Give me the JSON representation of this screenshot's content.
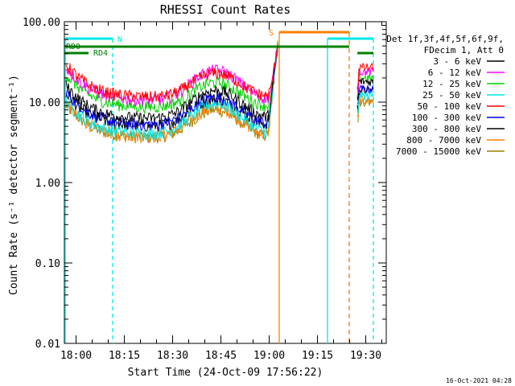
{
  "chart_data": {
    "type": "line",
    "title": "RHESSI Count Rates",
    "xlabel": "Start Time (24-Oct-09 17:56:22)",
    "ylabel": "Count Rate (s⁻¹ detector segment⁻¹)",
    "ylog": true,
    "ylim": [
      0.01,
      100
    ],
    "xlim_minutes": [
      0,
      41
    ],
    "y_ticks": [
      "0.01",
      "0.10",
      "1.00",
      "10.00",
      "100.00"
    ],
    "x_ticks": [
      {
        "label": "18:00",
        "min": 3.63
      },
      {
        "label": "18:15",
        "min": 18.63
      },
      {
        "label": "18:30",
        "min": 33.63
      },
      {
        "label": "18:45",
        "min": 48.63
      },
      {
        "label": "19:00",
        "min": 63.63
      },
      {
        "label": "19:15",
        "min": 78.63
      },
      {
        "label": "19:30",
        "min": 93.63
      }
    ],
    "legend_header": [
      "Det 1f,3f,4f,5f,6f,9f,",
      "FDecim 1, Att 0"
    ],
    "series": [
      {
        "name": "3 - 6 keV",
        "color": "#000000",
        "base": 6.2,
        "peak": 14.0,
        "after": 18.0
      },
      {
        "name": "6 - 12 keV",
        "color": "#ff00ff",
        "base": 10.5,
        "peak": 25.0,
        "after": 24.0
      },
      {
        "name": "12 - 25 keV",
        "color": "#00d000",
        "base": 8.6,
        "peak": 17.5,
        "after": 20.0
      },
      {
        "name": "25 - 50 keV",
        "color": "#00e8e8",
        "base": 4.0,
        "peak": 9.5,
        "after": 12.0
      },
      {
        "name": "50 - 100 keV",
        "color": "#ff0000",
        "base": 11.5,
        "peak": 23.0,
        "after": 27.0
      },
      {
        "name": "100 - 300 keV",
        "color": "#0000ff",
        "base": 5.2,
        "peak": 11.5,
        "after": 14.5
      },
      {
        "name": "300 - 800 keV",
        "color": "#000000",
        "base": 5.0,
        "peak": 11.0,
        "after": 14.0
      },
      {
        "name": "800 - 7000 keV",
        "color": "#ff8000",
        "base": 3.7,
        "peak": 8.5,
        "after": 10.5
      },
      {
        "name": "7000 - 15000 keV",
        "color": "#a08000",
        "base": 3.6,
        "peak": 8.0,
        "after": 10.0
      }
    ],
    "annotations": [
      {
        "label": "N",
        "color": "#00e8e8"
      },
      {
        "label": "S",
        "color": "#ff8000"
      },
      {
        "label": "RD0",
        "color": "#008000"
      },
      {
        "label": "RD4",
        "color": "#008000"
      }
    ]
  },
  "footer": {
    "timestamp": "16-Oct-2021 04:28"
  }
}
